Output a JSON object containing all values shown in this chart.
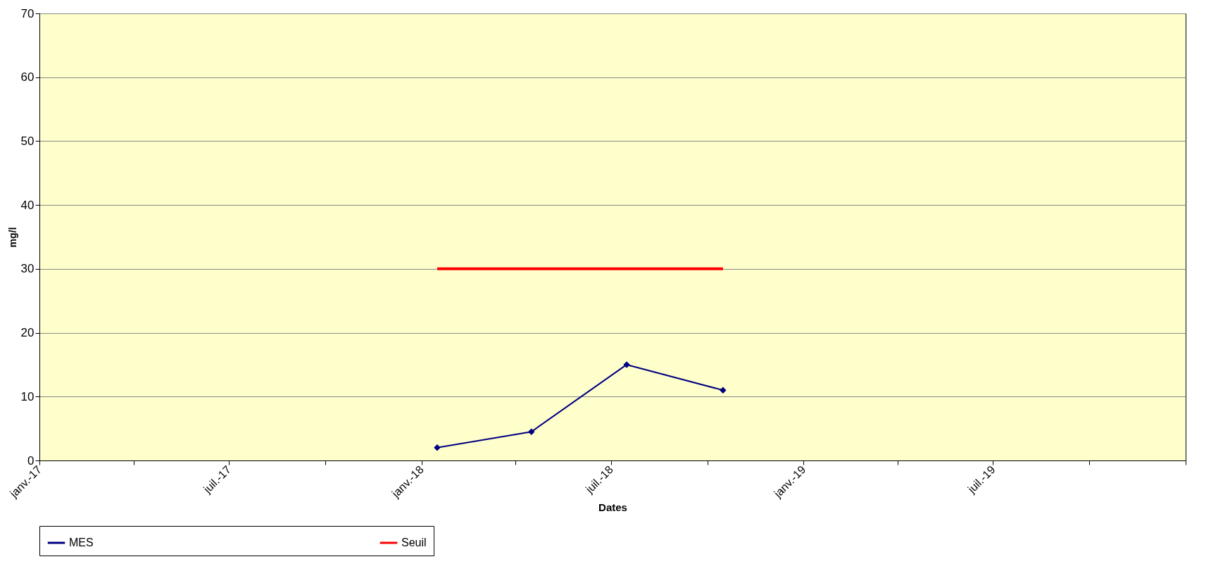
{
  "chart_data": {
    "type": "line",
    "xlabel": "Dates",
    "ylabel": "mg/l",
    "xlim": [
      "2017-01-01",
      "2020-01-01"
    ],
    "xticks": [
      {
        "value": "2017-01-01",
        "label": "janv.-17"
      },
      {
        "value": "2017-04-01",
        "label": null
      },
      {
        "value": "2017-07-01",
        "label": "juil.-17"
      },
      {
        "value": "2017-10-01",
        "label": null
      },
      {
        "value": "2018-01-01",
        "label": "janv.-18"
      },
      {
        "value": "2018-04-01",
        "label": null
      },
      {
        "value": "2018-07-01",
        "label": "juil.-18"
      },
      {
        "value": "2018-10-01",
        "label": null
      },
      {
        "value": "2019-01-01",
        "label": "janv.-19"
      },
      {
        "value": "2019-04-01",
        "label": null
      },
      {
        "value": "2019-07-01",
        "label": "juil.-19"
      },
      {
        "value": "2019-10-01",
        "label": null
      },
      {
        "value": "2020-01-01",
        "label": null
      }
    ],
    "ylim": [
      0,
      70
    ],
    "yticks": [
      0,
      10,
      20,
      30,
      40,
      50,
      60,
      70
    ],
    "grid": "y",
    "legend": "bottom",
    "series": [
      {
        "name": "MES",
        "color": "#000080",
        "marker": "diamond",
        "line_style": "solid",
        "x": [
          "2018-01-16",
          "2018-04-16",
          "2018-07-16",
          "2018-10-16"
        ],
        "values": [
          2,
          4.5,
          15,
          11
        ]
      },
      {
        "name": "Seuil",
        "color": "#ff0000",
        "marker": "none",
        "line_style": "solid",
        "x": [
          "2018-01-16",
          "2018-10-16"
        ],
        "values": [
          30,
          30
        ]
      }
    ]
  }
}
